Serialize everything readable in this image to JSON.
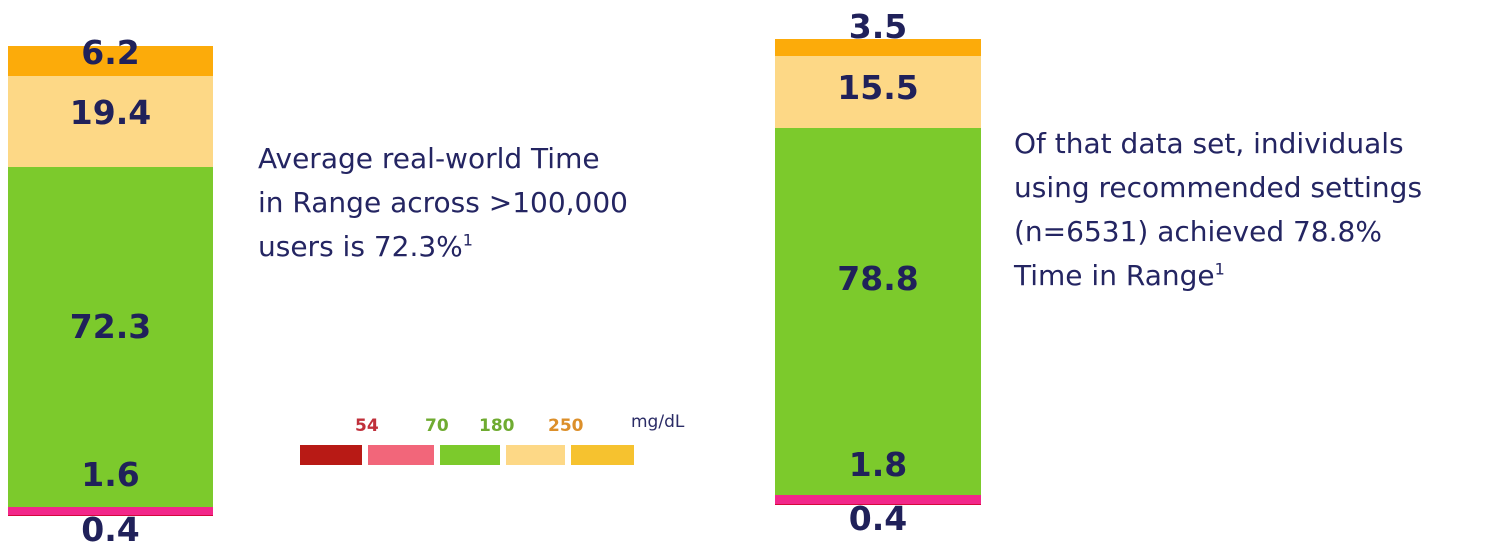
{
  "chart_data": [
    {
      "type": "bar",
      "stacked": true,
      "unit": "%",
      "segments": [
        {
          "value": 0.4,
          "label": "0.4",
          "color": "#d4083d"
        },
        {
          "value": 1.6,
          "label": "1.6",
          "color": "#f2278a"
        },
        {
          "value": 72.3,
          "label": "72.3",
          "color": "#7cca2c"
        },
        {
          "value": 19.4,
          "label": "19.4",
          "color": "#fdd886"
        },
        {
          "value": 6.2,
          "label": "6.2",
          "color": "#fcab0a"
        }
      ],
      "caption_lines": [
        "Average real-world Time",
        "in Range across >100,000",
        "users is 72.3%"
      ],
      "caption_sup": "1"
    },
    {
      "type": "bar",
      "stacked": true,
      "unit": "%",
      "segments": [
        {
          "value": 0.4,
          "label": "0.4",
          "color": "#d4083d"
        },
        {
          "value": 1.8,
          "label": "1.8",
          "color": "#f2278a"
        },
        {
          "value": 78.8,
          "label": "78.8",
          "color": "#7cca2c"
        },
        {
          "value": 15.5,
          "label": "15.5",
          "color": "#fdd886"
        },
        {
          "value": 3.5,
          "label": "3.5",
          "color": "#fcab0a"
        }
      ],
      "caption_lines": [
        "Of that data set, individuals",
        "using recommended settings",
        "(n=6531) achieved 78.8%",
        "Time in Range"
      ],
      "caption_sup": "1"
    }
  ],
  "legend": {
    "thresholds": [
      {
        "label": "54",
        "color": "#c0303b"
      },
      {
        "label": "70",
        "color": "#6fab31"
      },
      {
        "label": "180",
        "color": "#6fab31"
      },
      {
        "label": "250",
        "color": "#dc8f2a"
      }
    ],
    "unit": "mg/dL",
    "swatches": [
      "#b81a15",
      "#f2667a",
      "#7cca2c",
      "#fdd886",
      "#f6c22f"
    ]
  }
}
